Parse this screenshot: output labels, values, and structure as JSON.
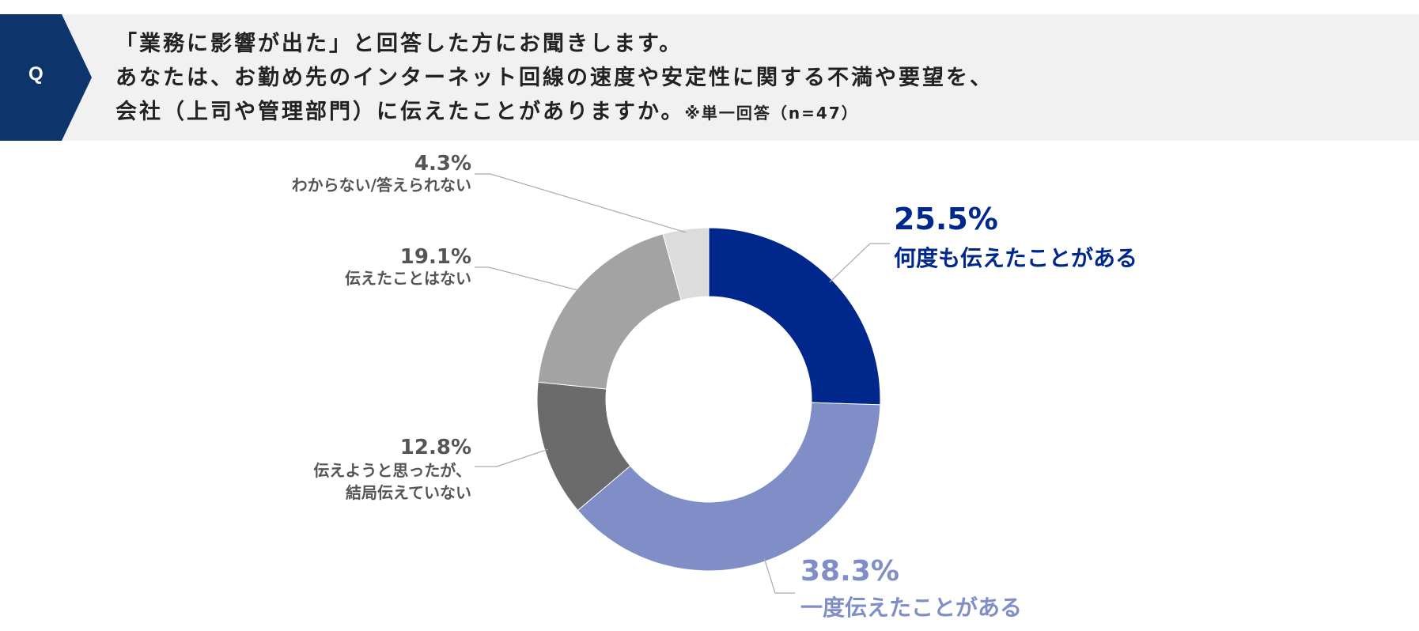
{
  "question": {
    "badge": "Q",
    "lines": [
      "「業務に影響が出た」と回答した方にお聞きします。",
      "あなたは、お勤め先のインターネット回線の速度や安定性に関する不満や要望を、",
      "会社（上司や管理部門）に伝えたことがありますか。"
    ],
    "note": "※単一回答（n=47）"
  },
  "chart_data": {
    "type": "pie",
    "variant": "donut",
    "title": "",
    "start": "12 o'clock, clockwise",
    "slices": [
      {
        "label": "何度も伝えたことがある",
        "pct_label": "25.5%",
        "value": 25.5,
        "color": "#00288c",
        "label_color": "#00288c"
      },
      {
        "label": "一度伝えたことがある",
        "pct_label": "38.3%",
        "value": 38.3,
        "color": "#7f8ec6",
        "label_color": "#7f8ec6"
      },
      {
        "label": "伝えようと思ったが、\n結局伝えていない",
        "pct_label": "12.8%",
        "value": 12.8,
        "color": "#6b6b6b",
        "label_color": "#555555"
      },
      {
        "label": "伝えたことはない",
        "pct_label": "19.1%",
        "value": 19.1,
        "color": "#a3a3a3",
        "label_color": "#555555"
      },
      {
        "label": "わからない/答えられない",
        "pct_label": "4.3%",
        "value": 4.3,
        "color": "#dcdcdc",
        "label_color": "#555555"
      }
    ]
  }
}
